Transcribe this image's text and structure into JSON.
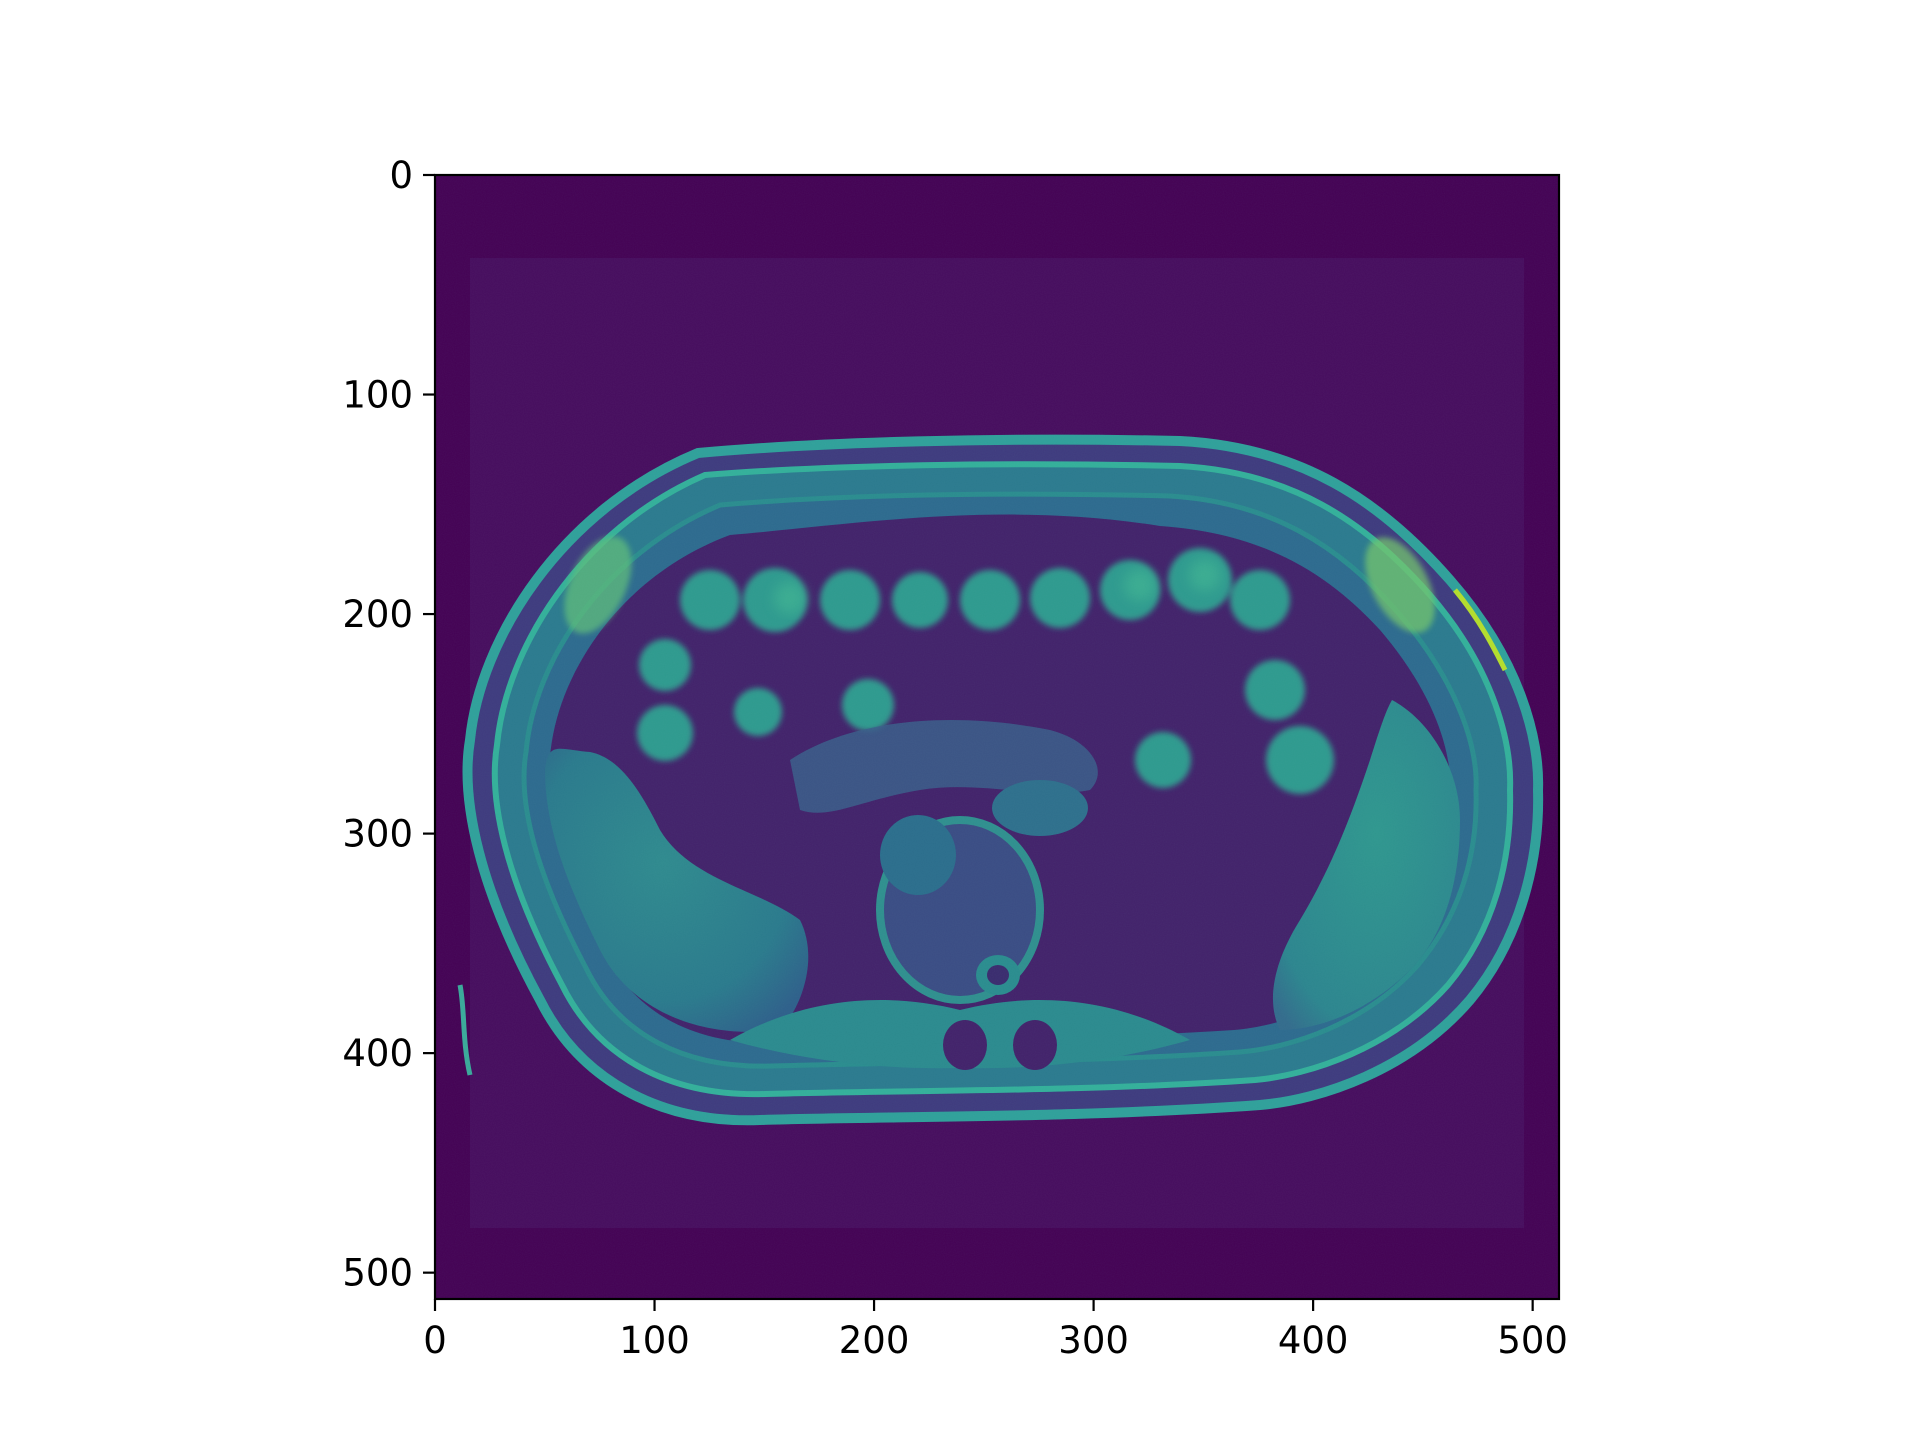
{
  "chart_data": {
    "type": "heatmap",
    "title": "",
    "xlabel": "",
    "ylabel": "",
    "colormap": "viridis",
    "image_shape": [
      512,
      512
    ],
    "xlim": [
      0,
      512
    ],
    "ylim": [
      512,
      0
    ],
    "x_ticks": [
      "0",
      "100",
      "200",
      "300",
      "400",
      "500"
    ],
    "y_ticks": [
      "0",
      "100",
      "200",
      "300",
      "400",
      "500"
    ],
    "x_tick_values": [
      0,
      100,
      200,
      300,
      400,
      500
    ],
    "y_tick_values": [
      0,
      100,
      200,
      300,
      400,
      500
    ],
    "grid": false,
    "legend": "none",
    "colors": {
      "background": "#440154",
      "tissue_dark": "#3b3c7e",
      "tissue_mid": "#2d7d8e",
      "tissue_bright": "#3fb59b",
      "highlight": "#a8db34"
    }
  }
}
